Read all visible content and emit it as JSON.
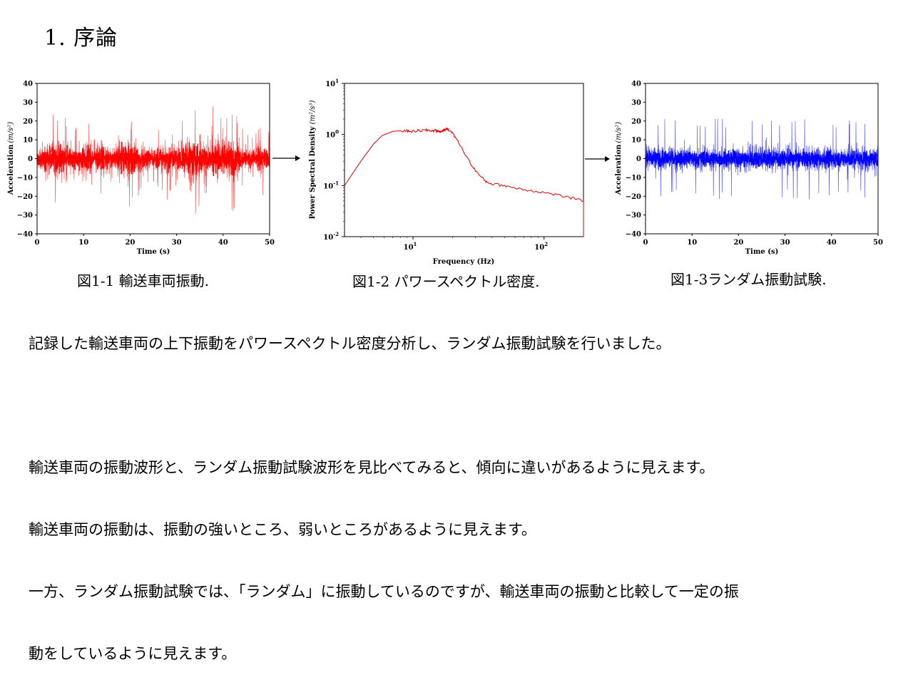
{
  "title": "1. 序論",
  "captions": {
    "fig1": "図1-1 輸送車両振動.",
    "fig2": "図1-2 パワースペクトル密度.",
    "fig3": "図1-3ランダム振動試験."
  },
  "body_lines": [
    "記録した輸送車両の上下振動をパワースペクトル密度分析し、ランダム振動試験を行いました。",
    "",
    "輸送車両の振動波形と、ランダム振動試験波形を見比べてみると、傾向に違いがあるように見えます。",
    "輸送車両の振動は、振動の強いところ、弱いところがあるように見えます。",
    "一方、ランダム振動試験では、「ランダム」に振動しているのですが、輸送車両の振動と比較して一定の振",
    "動をしているように見えます。"
  ],
  "chart_data": [
    {
      "type": "line",
      "xlabel": "Time (s)",
      "ylabel": "Acceleration",
      "ylabel_unit": "(m/s²)",
      "xlim": [
        0,
        50
      ],
      "ylim": [
        -40,
        40
      ],
      "xticks": [
        "0",
        "10",
        "20",
        "30",
        "40",
        "50"
      ],
      "yticks": [
        "40",
        "30",
        "20",
        "10",
        "0",
        "−10",
        "−20",
        "−30",
        "−40"
      ],
      "color": "#ff0000",
      "envelope": [
        {
          "t": 0,
          "amp": 12
        },
        {
          "t": 2,
          "amp": 18
        },
        {
          "t": 4,
          "amp": 25
        },
        {
          "t": 6,
          "amp": 20
        },
        {
          "t": 8,
          "amp": 14
        },
        {
          "t": 10,
          "amp": 22
        },
        {
          "t": 12,
          "amp": 15
        },
        {
          "t": 14,
          "amp": 20
        },
        {
          "t": 16,
          "amp": 12
        },
        {
          "t": 18,
          "amp": 20
        },
        {
          "t": 20,
          "amp": 24
        },
        {
          "t": 22,
          "amp": 18
        },
        {
          "t": 24,
          "amp": 11
        },
        {
          "t": 26,
          "amp": 14
        },
        {
          "t": 28,
          "amp": 20
        },
        {
          "t": 30,
          "amp": 16
        },
        {
          "t": 32,
          "amp": 21
        },
        {
          "t": 34,
          "amp": 28
        },
        {
          "t": 36,
          "amp": 22
        },
        {
          "t": 38,
          "amp": 26
        },
        {
          "t": 40,
          "amp": 20
        },
        {
          "t": 42,
          "amp": 27
        },
        {
          "t": 44,
          "amp": 15
        },
        {
          "t": 46,
          "amp": 12
        },
        {
          "t": 48,
          "amp": 20
        },
        {
          "t": 50,
          "amp": 13
        }
      ]
    },
    {
      "type": "line",
      "xlabel": "Frequency (Hz)",
      "ylabel": "Power Spectral Density",
      "ylabel_unit": "(m²/s³)",
      "x_scale": "log",
      "y_scale": "log",
      "xlim": [
        3,
        200
      ],
      "ylim": [
        0.01,
        10
      ],
      "xticks": [
        {
          "value": 10,
          "base": "10",
          "exp": "1"
        },
        {
          "value": 100,
          "base": "10",
          "exp": "2"
        }
      ],
      "yticks": [
        {
          "value": 10,
          "base": "10",
          "exp": "1"
        },
        {
          "value": 1,
          "base": "10",
          "exp": "0"
        },
        {
          "value": 0.1,
          "base": "10",
          "exp": "-1"
        },
        {
          "value": 0.01,
          "base": "10",
          "exp": "-2"
        }
      ],
      "color": "#e00000",
      "points": [
        [
          3,
          0.1
        ],
        [
          4,
          0.3
        ],
        [
          5,
          0.65
        ],
        [
          5.8,
          0.95
        ],
        [
          7,
          1.15
        ],
        [
          8,
          1.18
        ],
        [
          9,
          1.17
        ],
        [
          10,
          1.15
        ],
        [
          11,
          1.18
        ],
        [
          12,
          1.2
        ],
        [
          13,
          1.22
        ],
        [
          14,
          1.18
        ],
        [
          15,
          1.2
        ],
        [
          16,
          1.12
        ],
        [
          17,
          1.2
        ],
        [
          18,
          1.3
        ],
        [
          19,
          1.22
        ],
        [
          21,
          0.9
        ],
        [
          24,
          0.5
        ],
        [
          28,
          0.25
        ],
        [
          32,
          0.16
        ],
        [
          36,
          0.12
        ],
        [
          40,
          0.108
        ],
        [
          50,
          0.1
        ],
        [
          60,
          0.09
        ],
        [
          80,
          0.08
        ],
        [
          100,
          0.073
        ],
        [
          130,
          0.065
        ],
        [
          160,
          0.057
        ],
        [
          200,
          0.05
        ]
      ]
    },
    {
      "type": "line",
      "xlabel": "Time (s)",
      "ylabel": "Acceleration",
      "ylabel_unit": "(m/s²)",
      "xlim": [
        0,
        50
      ],
      "ylim": [
        -40,
        40
      ],
      "xticks": [
        "0",
        "10",
        "20",
        "30",
        "40",
        "50"
      ],
      "yticks": [
        "40",
        "30",
        "20",
        "10",
        "0",
        "−10",
        "−20",
        "−30",
        "−40"
      ],
      "color": "#0000ff",
      "envelope_amp": 13,
      "peak_amp": 22
    }
  ]
}
